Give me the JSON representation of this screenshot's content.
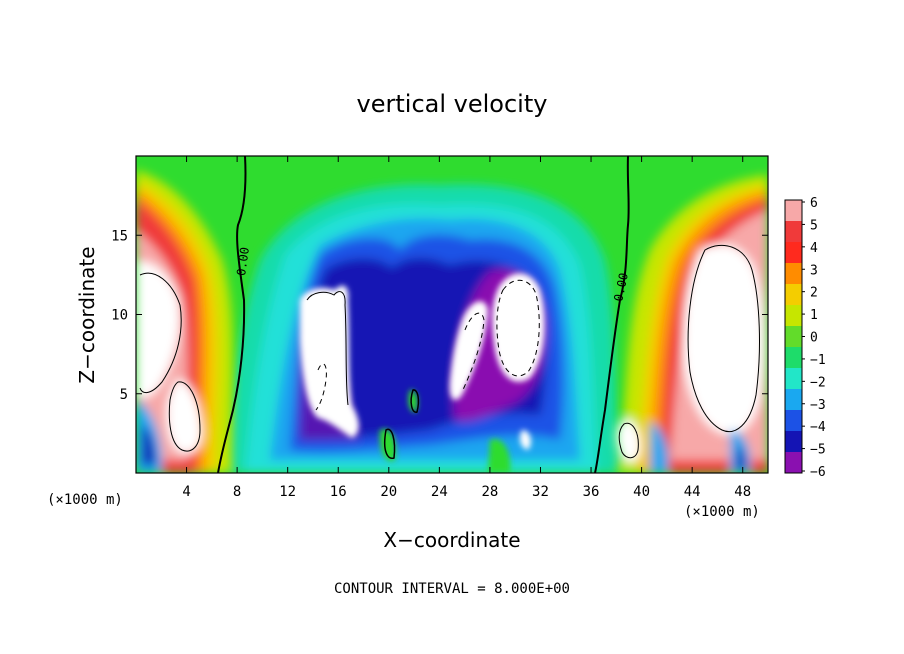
{
  "chart_data": {
    "type": "heatmap",
    "title": "vertical velocity",
    "xlabel": "X−coordinate",
    "ylabel": "Z−coordinate",
    "x_unit_label": "(×1000 m)",
    "xlim": [
      0,
      50
    ],
    "ylim": [
      0,
      20
    ],
    "x_ticks": [
      4,
      8,
      12,
      16,
      20,
      24,
      28,
      32,
      36,
      40,
      44,
      48
    ],
    "y_ticks": [
      5,
      10,
      15
    ],
    "colorbar": {
      "min": -6,
      "max": 6,
      "labels": [
        "6",
        "5",
        "4",
        "3",
        "2",
        "1",
        "0",
        "−1",
        "−2",
        "−3",
        "−4",
        "−5",
        "−6"
      ],
      "colors": [
        "#f7a8a8",
        "#f03a3a",
        "#ff2a1e",
        "#ff8c00",
        "#f4cd00",
        "#c6e600",
        "#62dc2a",
        "#1edc6a",
        "#22e6c8",
        "#1aa8f0",
        "#1c52e6",
        "#1414b4",
        "#8a10b0"
      ]
    },
    "contour_labels": [
      "0.00",
      "0.00"
    ],
    "features": [
      {
        "kind": "updraft",
        "x": 4.2,
        "z": 2.6,
        "value": 9
      },
      {
        "kind": "updraft",
        "x": 2.3,
        "z": 8.8,
        "value": 9
      },
      {
        "kind": "updraft",
        "x": 44.5,
        "z": 9.0,
        "value": 9
      },
      {
        "kind": "updraft",
        "x": 39.0,
        "z": 1.8,
        "value": 9
      },
      {
        "kind": "downdraft",
        "x": 16.0,
        "z": 8.5,
        "value": -9
      },
      {
        "kind": "downdraft",
        "x": 30.0,
        "z": 9.5,
        "value": -9
      },
      {
        "kind": "downdraft",
        "x": 26.0,
        "z": 6.5,
        "value": -9
      },
      {
        "kind": "downdraft",
        "x": 1.2,
        "z": 1.5,
        "value": -6
      },
      {
        "kind": "downdraft",
        "x": 42.0,
        "z": 1.5,
        "value": -6
      },
      {
        "kind": "downdraft",
        "x": 48.2,
        "z": 1.0,
        "value": -6
      }
    ]
  },
  "footer_note": "CONTOUR INTERVAL = 8.000E+00"
}
